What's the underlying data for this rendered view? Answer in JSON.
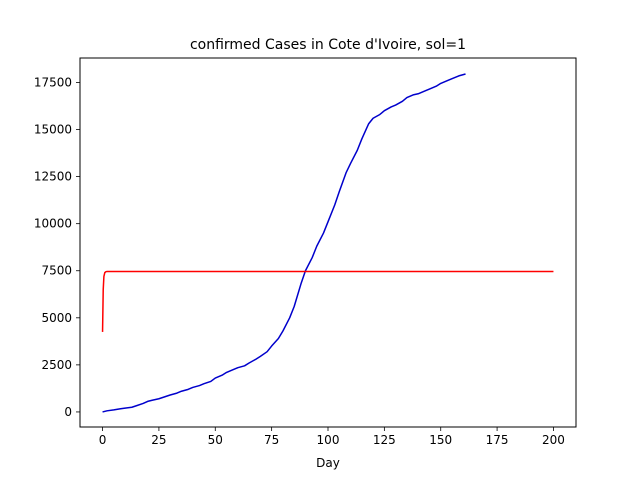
{
  "chart_data": {
    "type": "line",
    "title": "confirmed Cases in Cote d'Ivoire, sol=1",
    "xlabel": "Day",
    "ylabel": "",
    "xlim": [
      -10,
      210
    ],
    "ylim": [
      -800,
      18800
    ],
    "grid": false,
    "x_ticks": [
      0,
      25,
      50,
      75,
      100,
      125,
      150,
      175,
      200
    ],
    "y_ticks": [
      0,
      2500,
      5000,
      7500,
      10000,
      12500,
      15000,
      17500
    ],
    "series": [
      {
        "color": "#0000cc",
        "x": [
          0,
          2,
          5,
          8,
          10,
          13,
          15,
          18,
          20,
          22,
          25,
          28,
          30,
          33,
          35,
          38,
          40,
          43,
          45,
          48,
          50,
          53,
          55,
          58,
          60,
          63,
          65,
          68,
          70,
          73,
          75,
          78,
          80,
          83,
          85,
          88,
          90,
          93,
          95,
          98,
          100,
          103,
          105,
          108,
          110,
          113,
          115,
          118,
          120,
          123,
          125,
          128,
          130,
          133,
          135,
          138,
          140,
          143,
          145,
          148,
          150,
          153,
          155,
          158,
          161
        ],
        "y": [
          0,
          60,
          110,
          170,
          200,
          250,
          330,
          450,
          560,
          620,
          700,
          820,
          900,
          1000,
          1100,
          1200,
          1300,
          1400,
          1500,
          1620,
          1800,
          1950,
          2100,
          2250,
          2350,
          2450,
          2600,
          2800,
          2950,
          3200,
          3500,
          3900,
          4300,
          5000,
          5600,
          6800,
          7500,
          8200,
          8800,
          9500,
          10100,
          11000,
          11700,
          12700,
          13200,
          13900,
          14500,
          15300,
          15600,
          15800,
          16000,
          16200,
          16300,
          16500,
          16700,
          16850,
          16900,
          17050,
          17150,
          17300,
          17450,
          17600,
          17700,
          17850,
          17950
        ]
      },
      {
        "color": "#ff0000",
        "x": [
          0,
          0.3,
          0.6,
          1.0,
          1.5,
          2,
          3,
          5,
          10,
          50,
          100,
          150,
          200
        ],
        "y": [
          4250,
          6500,
          7200,
          7400,
          7450,
          7460,
          7460,
          7460,
          7460,
          7460,
          7460,
          7460,
          7460
        ]
      }
    ]
  }
}
